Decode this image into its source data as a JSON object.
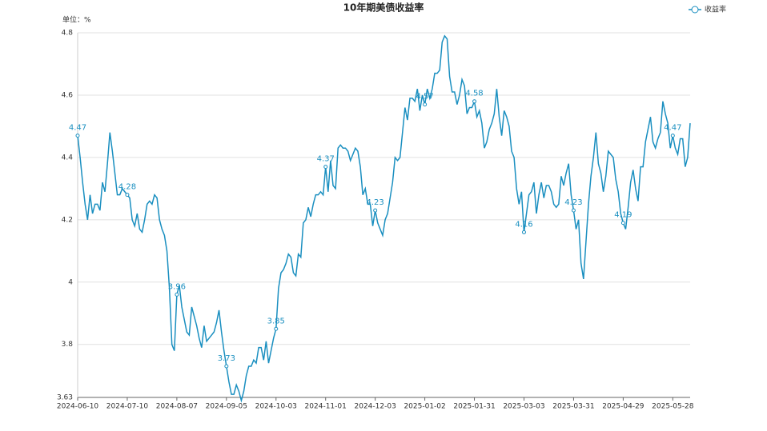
{
  "chart_data": {
    "type": "line",
    "title": "10年期美债收益率",
    "y_label": "单位：%",
    "ylim": [
      3.63,
      4.8
    ],
    "yticks": [
      3.63,
      3.8,
      4,
      4.2,
      4.4,
      4.6,
      4.8
    ],
    "grid": true,
    "legend": "top-right",
    "categories": [
      "2024-06-10",
      null,
      null,
      null,
      null,
      null,
      null,
      null,
      null,
      null,
      null,
      null,
      null,
      null,
      null,
      null,
      null,
      null,
      null,
      null,
      "2024-07-10",
      null,
      null,
      null,
      null,
      null,
      null,
      null,
      null,
      null,
      null,
      null,
      null,
      null,
      null,
      null,
      null,
      null,
      null,
      null,
      "2024-08-07",
      null,
      null,
      null,
      null,
      null,
      null,
      null,
      null,
      null,
      null,
      null,
      null,
      null,
      null,
      null,
      null,
      null,
      null,
      null,
      "2024-09-05",
      null,
      null,
      null,
      null,
      null,
      null,
      null,
      null,
      null,
      null,
      null,
      null,
      null,
      null,
      null,
      null,
      null,
      null,
      null,
      "2024-10-03",
      null,
      null,
      null,
      null,
      null,
      null,
      null,
      null,
      null,
      null,
      null,
      null,
      null,
      null,
      null,
      null,
      null,
      null,
      null,
      "2024-11-01",
      null,
      null,
      null,
      null,
      null,
      null,
      null,
      null,
      null,
      null,
      null,
      null,
      null,
      null,
      null,
      null,
      null,
      null,
      null,
      "2024-12-03",
      null,
      null,
      null,
      null,
      null,
      null,
      null,
      null,
      null,
      null,
      null,
      null,
      null,
      null,
      null,
      null,
      null,
      null,
      null,
      "2025-01-02",
      null,
      null,
      null,
      null,
      null,
      null,
      null,
      null,
      null,
      null,
      null,
      null,
      null,
      null,
      null,
      null,
      null,
      null,
      null,
      "2025-01-31",
      null,
      null,
      null,
      null,
      null,
      null,
      null,
      null,
      null,
      null,
      null,
      null,
      null,
      null,
      null,
      null,
      null,
      null,
      null,
      "2025-03-03",
      null,
      null,
      null,
      null,
      null,
      null,
      null,
      null,
      null,
      null,
      null,
      null,
      null,
      null,
      null,
      null,
      null,
      null,
      null,
      "2025-03-31",
      null,
      null,
      null,
      null,
      null,
      null,
      null,
      null,
      null,
      null,
      null,
      null,
      null,
      null,
      null,
      null,
      null,
      null,
      null,
      "2025-04-29",
      null,
      null,
      null,
      null,
      null,
      null,
      null,
      null,
      null,
      null,
      null,
      null,
      null,
      null,
      null,
      null,
      null,
      null,
      null,
      "2025-05-28",
      null,
      null,
      null,
      null,
      null,
      null,
      null
    ],
    "series": [
      {
        "name": "收益率",
        "color": "#1a8fc0",
        "values": [
          4.47,
          4.4,
          4.32,
          4.25,
          4.2,
          4.28,
          4.22,
          4.25,
          4.25,
          4.23,
          4.32,
          4.29,
          4.38,
          4.48,
          4.42,
          4.35,
          4.28,
          4.28,
          4.3,
          4.29,
          4.28,
          4.27,
          4.2,
          4.18,
          4.22,
          4.17,
          4.16,
          4.2,
          4.25,
          4.26,
          4.25,
          4.28,
          4.27,
          4.2,
          4.17,
          4.15,
          4.1,
          3.98,
          3.8,
          3.78,
          3.96,
          3.99,
          3.92,
          3.88,
          3.84,
          3.83,
          3.92,
          3.89,
          3.86,
          3.82,
          3.79,
          3.86,
          3.81,
          3.82,
          3.83,
          3.84,
          3.87,
          3.91,
          3.84,
          3.78,
          3.73,
          3.68,
          3.64,
          3.64,
          3.67,
          3.65,
          3.62,
          3.65,
          3.7,
          3.73,
          3.73,
          3.75,
          3.74,
          3.79,
          3.79,
          3.75,
          3.81,
          3.74,
          3.78,
          3.82,
          3.85,
          3.98,
          4.03,
          4.04,
          4.06,
          4.09,
          4.08,
          4.03,
          4.02,
          4.09,
          4.08,
          4.19,
          4.2,
          4.24,
          4.21,
          4.25,
          4.28,
          4.28,
          4.29,
          4.28,
          4.37,
          4.29,
          4.39,
          4.31,
          4.3,
          4.43,
          4.44,
          4.43,
          4.43,
          4.42,
          4.39,
          4.41,
          4.43,
          4.42,
          4.37,
          4.28,
          4.3,
          4.25,
          4.25,
          4.18,
          4.23,
          4.19,
          4.17,
          4.15,
          4.2,
          4.22,
          4.27,
          4.32,
          4.4,
          4.39,
          4.4,
          4.48,
          4.56,
          4.52,
          4.59,
          4.59,
          4.58,
          4.62,
          4.55,
          4.6,
          4.57,
          4.62,
          4.59,
          4.62,
          4.67,
          4.67,
          4.68,
          4.77,
          4.79,
          4.78,
          4.66,
          4.61,
          4.61,
          4.57,
          4.6,
          4.65,
          4.63,
          4.54,
          4.56,
          4.56,
          4.58,
          4.53,
          4.55,
          4.51,
          4.43,
          4.45,
          4.49,
          4.51,
          4.54,
          4.62,
          4.53,
          4.47,
          4.55,
          4.53,
          4.5,
          4.42,
          4.4,
          4.3,
          4.25,
          4.29,
          4.16,
          4.22,
          4.28,
          4.29,
          4.32,
          4.22,
          4.28,
          4.32,
          4.27,
          4.31,
          4.31,
          4.29,
          4.25,
          4.24,
          4.25,
          4.34,
          4.31,
          4.35,
          4.38,
          4.28,
          4.23,
          4.17,
          4.2,
          4.06,
          4.01,
          4.13,
          4.25,
          4.34,
          4.4,
          4.48,
          4.38,
          4.35,
          4.29,
          4.34,
          4.42,
          4.41,
          4.4,
          4.33,
          4.29,
          4.22,
          4.19,
          4.17,
          4.24,
          4.32,
          4.36,
          4.3,
          4.26,
          4.37,
          4.37,
          4.45,
          4.49,
          4.53,
          4.45,
          4.43,
          4.46,
          4.48,
          4.58,
          4.54,
          4.51,
          4.43,
          4.47,
          4.43,
          4.41,
          4.46,
          4.46,
          4.37,
          4.4,
          4.51
        ]
      }
    ]
  }
}
